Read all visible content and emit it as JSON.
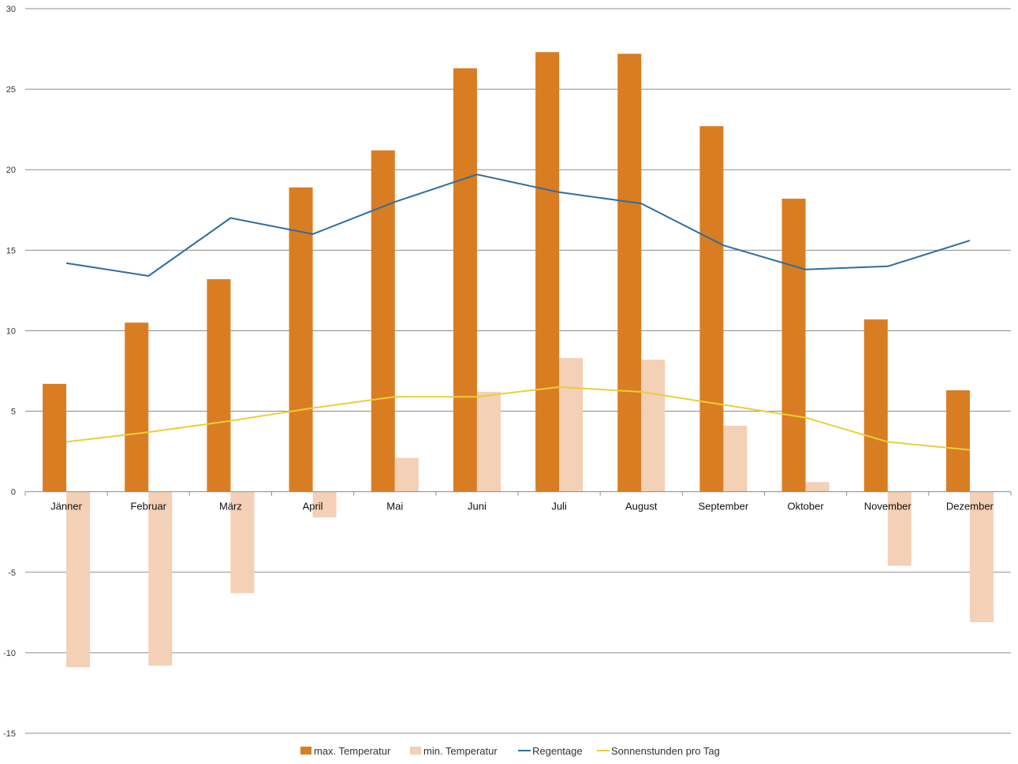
{
  "chart_data": {
    "type": "bar",
    "categories": [
      "Jänner",
      "Februar",
      "März",
      "April",
      "Mai",
      "Juni",
      "Juli",
      "August",
      "September",
      "Oktober",
      "November",
      "Dezember"
    ],
    "series": [
      {
        "name": "max. Temperatur",
        "kind": "bar",
        "color": "#D97D22",
        "values": [
          6.7,
          10.5,
          13.2,
          18.9,
          21.2,
          26.3,
          27.3,
          27.2,
          22.7,
          18.2,
          10.7,
          6.3
        ]
      },
      {
        "name": "min. Temperatur",
        "kind": "bar",
        "color": "#F3D0B6",
        "values": [
          -10.9,
          -10.8,
          -6.3,
          -1.6,
          2.1,
          6.2,
          8.3,
          8.2,
          4.1,
          0.6,
          -4.6,
          -8.1
        ]
      },
      {
        "name": "Regentage",
        "kind": "line",
        "color": "#2F6E9A",
        "values": [
          14.2,
          13.4,
          17.0,
          16.0,
          18.0,
          19.7,
          18.6,
          17.9,
          15.3,
          13.8,
          14.0,
          15.6
        ]
      },
      {
        "name": "Sonnenstunden pro Tag",
        "kind": "line",
        "color": "#E8CF3A",
        "values": [
          3.1,
          3.7,
          4.4,
          5.2,
          5.9,
          5.9,
          6.5,
          6.2,
          5.4,
          4.6,
          3.1,
          2.6
        ]
      }
    ],
    "y_ticks": [
      "30",
      "25",
      "20",
      "15",
      "10",
      "5",
      "0",
      "-5",
      "-10",
      "-15"
    ],
    "ylim": [
      -15,
      30
    ],
    "grid": true,
    "legend_position": "bottom-center",
    "title": "",
    "xlabel": "",
    "ylabel": ""
  }
}
